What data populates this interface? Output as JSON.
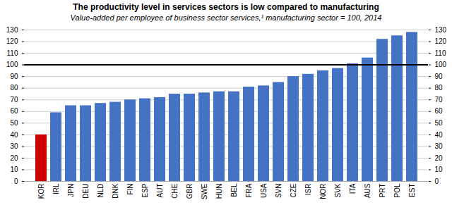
{
  "chart_data": {
    "type": "bar",
    "title": "The productivity level in services sectors is low compared to manufacturing",
    "subtitle": "Value-added per employee of business sector services,¹ manufacturing sector = 100, 2014",
    "categories": [
      "KOR",
      "IRL",
      "JPN",
      "DEU",
      "NLD",
      "DNK",
      "FIN",
      "ESP",
      "AUT",
      "CHE",
      "GBR",
      "SWE",
      "HUN",
      "BEL",
      "FRA",
      "USA",
      "SVN",
      "CZE",
      "ISR",
      "NOR",
      "SVK",
      "ITA",
      "AUS",
      "PRT",
      "POL",
      "EST"
    ],
    "values": [
      40,
      59,
      65,
      65,
      67,
      68,
      70,
      71,
      72,
      75,
      75,
      76,
      77,
      77,
      81,
      82,
      85,
      90,
      92,
      95,
      97,
      101,
      106,
      122,
      125,
      128
    ],
    "colors": [
      "#cc0000",
      "#4472c4",
      "#4472c4",
      "#4472c4",
      "#4472c4",
      "#4472c4",
      "#4472c4",
      "#4472c4",
      "#4472c4",
      "#4472c4",
      "#4472c4",
      "#4472c4",
      "#4472c4",
      "#4472c4",
      "#4472c4",
      "#4472c4",
      "#4472c4",
      "#4472c4",
      "#4472c4",
      "#4472c4",
      "#4472c4",
      "#4472c4",
      "#4472c4",
      "#4472c4",
      "#4472c4",
      "#4472c4"
    ],
    "reference_line": 100,
    "ylim": [
      0,
      130
    ],
    "yticks": [
      0,
      10,
      20,
      30,
      40,
      50,
      60,
      70,
      80,
      90,
      100,
      110,
      120,
      130
    ],
    "grid": true
  }
}
